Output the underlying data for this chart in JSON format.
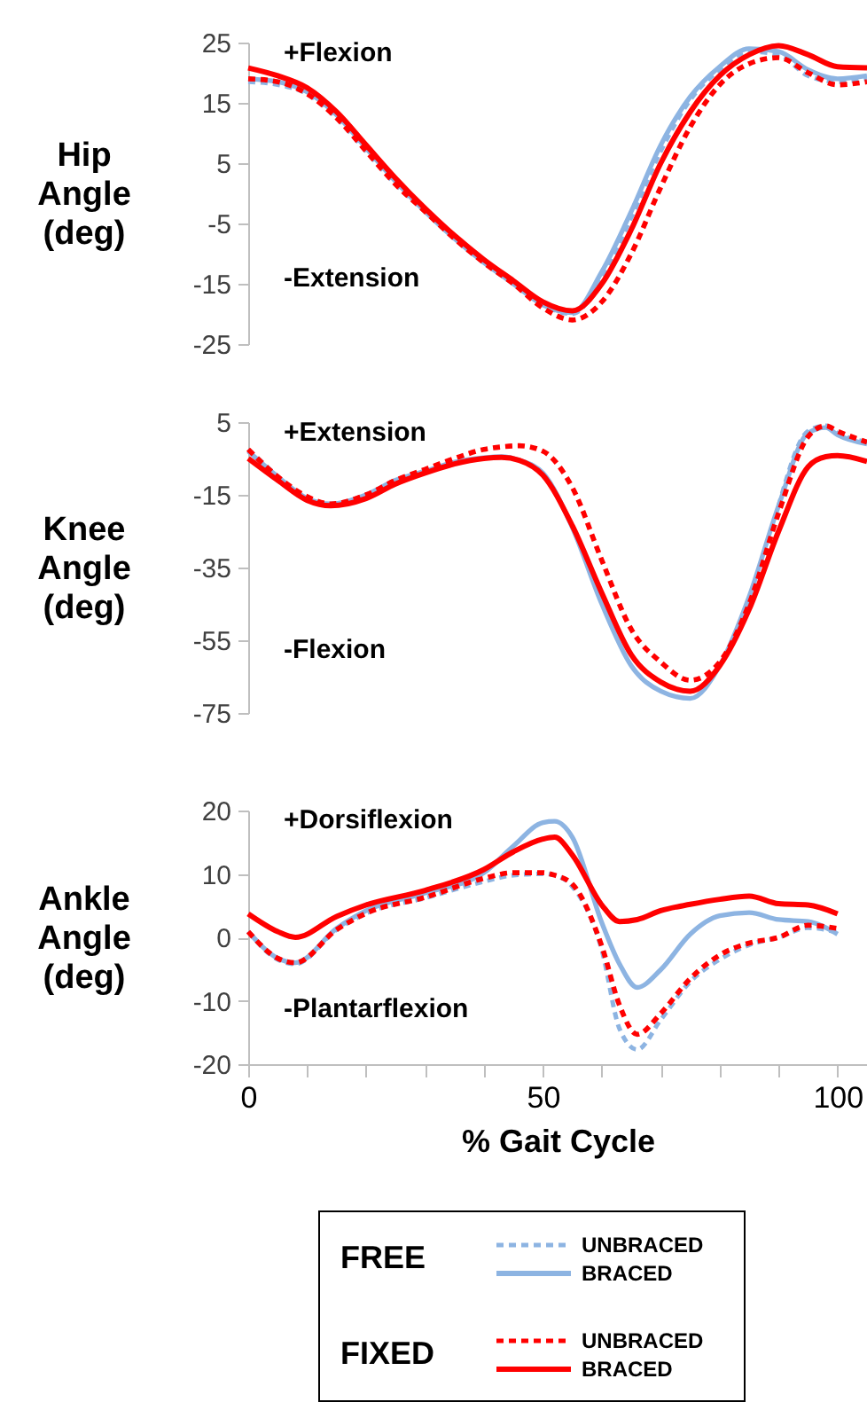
{
  "chart_data": [
    {
      "type": "line",
      "ylabel": "Hip Angle (deg)",
      "xlim": [
        0,
        105
      ],
      "ylim": [
        -25,
        25
      ],
      "yticks": [
        25,
        15,
        5,
        -5,
        -15,
        -25
      ],
      "tick_labels": "y",
      "annotations": [
        "+Flexion",
        "-Extension"
      ],
      "series": [
        {
          "color": "#8db4e2",
          "line_style": "dashed",
          "x": [
            0,
            5,
            10,
            15,
            20,
            25,
            30,
            35,
            40,
            45,
            50,
            55,
            60,
            65,
            70,
            75,
            80,
            85,
            90,
            95,
            100,
            105
          ],
          "values": [
            18.5,
            18,
            16.5,
            12.5,
            7,
            1.5,
            -3,
            -7.5,
            -11.5,
            -15,
            -18.5,
            -20,
            -14,
            -4,
            7,
            15.5,
            20.5,
            23.5,
            23,
            19.5,
            18.5,
            19
          ]
        },
        {
          "color": "#8db4e2",
          "line_style": "solid",
          "x": [
            0,
            5,
            10,
            15,
            20,
            25,
            30,
            35,
            40,
            45,
            50,
            55,
            60,
            65,
            70,
            75,
            80,
            85,
            90,
            95,
            100,
            105
          ],
          "values": [
            19,
            18.5,
            16.8,
            13,
            7.5,
            2,
            -3,
            -7.5,
            -11.5,
            -15,
            -18.5,
            -19.8,
            -13,
            -3,
            8,
            16,
            21,
            24,
            23.5,
            20.5,
            19,
            19.5
          ]
        },
        {
          "color": "#ff0000",
          "line_style": "dashed",
          "x": [
            0,
            5,
            10,
            15,
            20,
            25,
            30,
            35,
            40,
            45,
            50,
            55,
            60,
            65,
            70,
            75,
            80,
            85,
            90,
            95,
            100,
            105
          ],
          "values": [
            19,
            18.5,
            16.5,
            12.5,
            7,
            1.5,
            -3,
            -7.5,
            -11.5,
            -15,
            -19,
            -21,
            -18,
            -10,
            1,
            11,
            18,
            21.5,
            22.5,
            20,
            18,
            18.5
          ]
        },
        {
          "color": "#ff0000",
          "line_style": "solid",
          "x": [
            0,
            5,
            10,
            15,
            20,
            25,
            30,
            35,
            40,
            45,
            50,
            55,
            60,
            65,
            70,
            75,
            80,
            85,
            90,
            95,
            100,
            105
          ],
          "values": [
            20.8,
            19.5,
            17.5,
            13.5,
            8,
            2.5,
            -2.5,
            -7,
            -11,
            -14.5,
            -18,
            -19.5,
            -15,
            -6,
            5,
            13.5,
            19.5,
            23,
            24.5,
            23,
            21,
            20.8
          ]
        }
      ]
    },
    {
      "type": "line",
      "ylabel": "Knee Angle (deg)",
      "xlim": [
        0,
        105
      ],
      "ylim": [
        -75,
        5
      ],
      "yticks": [
        5,
        -15,
        -35,
        -55,
        -75
      ],
      "tick_labels": "y",
      "annotations": [
        "+Extension",
        "-Flexion"
      ],
      "series": [
        {
          "color": "#8db4e2",
          "line_style": "dashed",
          "x": [
            0,
            5,
            10,
            14,
            20,
            25,
            30,
            35,
            40,
            43,
            46,
            50,
            55,
            60,
            65,
            70,
            75,
            80,
            85,
            90,
            95,
            98,
            100,
            105
          ],
          "values": [
            -2.5,
            -10,
            null,
            null,
            null,
            null,
            null,
            null,
            null,
            null,
            null,
            null,
            null,
            null,
            null,
            null,
            null,
            null,
            null,
            -18,
            2.5,
            4,
            2,
            -0.5
          ]
        },
        {
          "color": "#8db4e2",
          "line_style": "solid",
          "x": [
            0,
            5,
            10,
            14,
            20,
            25,
            30,
            35,
            40,
            43,
            46,
            50,
            55,
            60,
            65,
            70,
            75,
            80,
            85,
            90,
            95,
            98,
            100,
            105
          ],
          "values": [
            -3,
            -10,
            -16,
            -17.5,
            -15,
            -11,
            -8.5,
            -6,
            -4.8,
            -4.5,
            -5.5,
            -9,
            -24,
            -45,
            -62,
            -69,
            -71,
            -62,
            -43,
            -18,
            2,
            3.5,
            1.5,
            -1
          ]
        },
        {
          "color": "#ff0000",
          "line_style": "dashed",
          "x": [
            0,
            5,
            10,
            14,
            20,
            25,
            30,
            35,
            40,
            43,
            46,
            50,
            55,
            60,
            65,
            70,
            75,
            80,
            85,
            90,
            95,
            98,
            100,
            105
          ],
          "values": [
            -2.5,
            -10,
            -15.5,
            -17.5,
            -15,
            -11,
            -8,
            -5,
            -2.5,
            -1.8,
            -1.5,
            -3,
            -13,
            -33,
            -52,
            -61,
            -66,
            -61,
            -45,
            -20,
            1,
            4,
            2.5,
            -0.5
          ]
        },
        {
          "color": "#ff0000",
          "line_style": "solid",
          "x": [
            0,
            5,
            10,
            14,
            20,
            25,
            30,
            35,
            40,
            43,
            46,
            50,
            55,
            60,
            65,
            70,
            75,
            80,
            85,
            90,
            95,
            98,
            100,
            105
          ],
          "values": [
            -5,
            -11,
            -16.5,
            -18,
            -16,
            -12,
            -9,
            -6.5,
            -5,
            -4.7,
            -5.5,
            -9.6,
            -23.5,
            -42,
            -59,
            -66.5,
            -69,
            -62,
            -46.5,
            -25,
            -7.3,
            -4.5,
            -4.2,
            -5.8
          ]
        }
      ]
    },
    {
      "type": "line",
      "ylabel": "Ankle Angle (deg)",
      "xlabel": "% Gait Cycle",
      "xlim": [
        0,
        105
      ],
      "xticks": [
        0,
        {
          "value": 10,
          "label": null
        },
        {
          "value": 20,
          "label": null
        },
        {
          "value": 30,
          "label": null
        },
        {
          "value": 40,
          "label": null
        },
        50,
        {
          "value": 60,
          "label": null
        },
        {
          "value": 70,
          "label": null
        },
        {
          "value": 80,
          "label": null
        },
        {
          "value": 90,
          "label": null
        },
        100
      ],
      "ylim": [
        -20,
        20
      ],
      "yticks": [
        20,
        10,
        0,
        -10,
        -20
      ],
      "legend": "bottom",
      "annotations": [
        "+Dorsiflexion",
        "-Plantarflexion",
        "FREE",
        "FIXED"
      ],
      "series": [
        {
          "name": "UNBRACED",
          "color": "#8db4e2",
          "line_style": "dashed",
          "x": [
            0,
            5,
            8,
            15,
            20,
            30,
            40,
            45,
            50,
            52,
            55,
            60,
            63,
            66,
            70,
            75,
            80,
            85,
            90,
            95,
            100
          ],
          "values": [
            0.9,
            -3.5,
            -4.2,
            1.2,
            3.8,
            6.2,
            8.8,
            9.8,
            10,
            9.8,
            8,
            -2,
            -14.4,
            -17.7,
            -13,
            -7,
            -3.5,
            -1.2,
            0,
            1.5,
            0.8
          ]
        },
        {
          "name": "BRACED",
          "color": "#8db4e2",
          "line_style": "solid",
          "x": [
            0,
            5,
            8,
            15,
            20,
            30,
            40,
            45,
            50,
            52,
            55,
            60,
            63,
            66,
            70,
            75,
            80,
            85,
            90,
            95,
            100
          ],
          "values": [
            0.9,
            -3.3,
            -4,
            1.4,
            4.2,
            7,
            10.2,
            14.4,
            18.1,
            18.3,
            15.8,
            2.3,
            -4.2,
            -7.9,
            -5.1,
            0.5,
            3.4,
            3.9,
            2.8,
            2.5,
            0.5
          ]
        },
        {
          "name": "UNBRACED",
          "color": "#ff0000",
          "line_style": "dashed",
          "x": [
            0,
            5,
            8,
            15,
            20,
            30,
            40,
            45,
            50,
            52,
            55,
            60,
            63,
            66,
            70,
            75,
            80,
            85,
            90,
            95,
            100
          ],
          "values": [
            0.9,
            -3.3,
            -4,
            1.2,
            3.8,
            6.3,
            9.3,
            10.2,
            10.2,
            9.8,
            8.4,
            -1.4,
            -10.7,
            -15.3,
            -12,
            -6.5,
            -2.8,
            -0.9,
            0,
            1.9,
            1.4
          ]
        },
        {
          "name": "BRACED",
          "color": "#ff0000",
          "line_style": "solid",
          "x": [
            0,
            5,
            8,
            15,
            20,
            30,
            40,
            45,
            50,
            52,
            55,
            60,
            63,
            66,
            70,
            75,
            80,
            85,
            90,
            95,
            100
          ],
          "values": [
            3.7,
            0.9,
            0,
            3.3,
            5.1,
            7.4,
            10.7,
            13.5,
            15.5,
            15.8,
            13,
            5.1,
            2.5,
            2.8,
            4.2,
            5.2,
            6,
            6.5,
            5.3,
            5.1,
            3.7
          ]
        }
      ]
    }
  ]
}
